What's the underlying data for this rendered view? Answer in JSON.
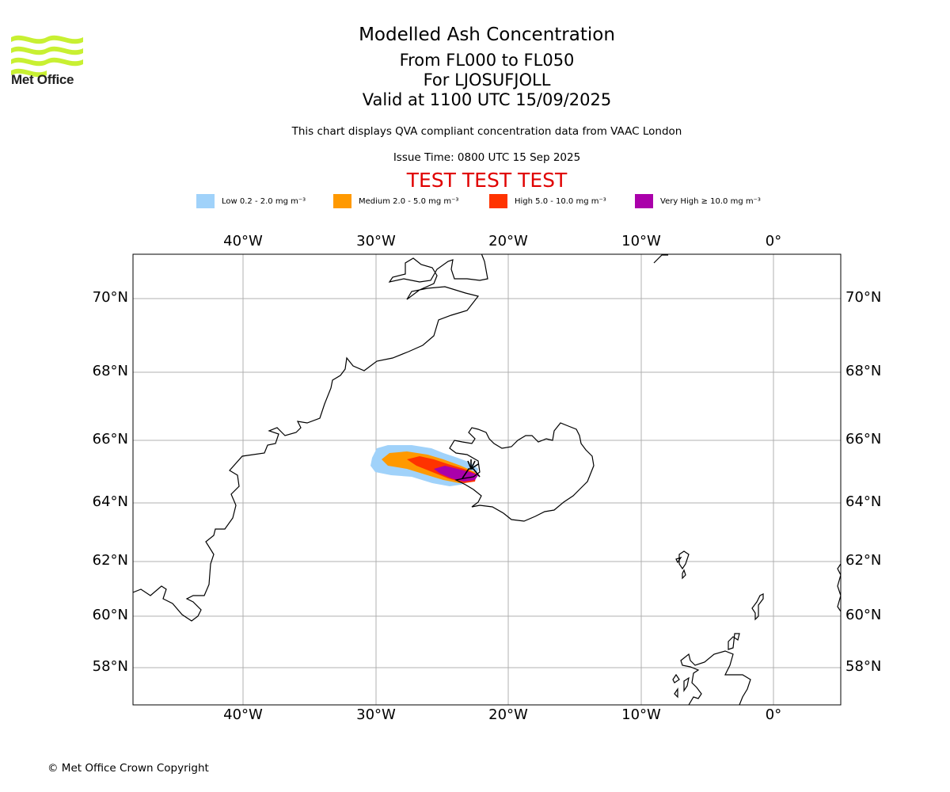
{
  "logo": {
    "brand": "Met Office",
    "color": "#c8f032"
  },
  "header": {
    "title": "Modelled Ash Concentration",
    "level_range": "From FL000 to FL050",
    "location": "For LJOSUFJOLL",
    "valid": "Valid at 1100 UTC 15/09/2025",
    "description": "This chart displays QVA compliant concentration data from VAAC London",
    "issue_time": "Issue Time: 0800 UTC 15 Sep 2025",
    "test_banner": "TEST TEST TEST"
  },
  "legend": [
    {
      "label": "Low 0.2 - 2.0 mg m⁻³",
      "color": "#a0d2fa"
    },
    {
      "label": "Medium 2.0 - 5.0 mg m⁻³",
      "color": "#ff9900"
    },
    {
      "label": "High 5.0 - 10.0 mg m⁻³",
      "color": "#ff3300"
    },
    {
      "label": "Very High  ≥  10.0 mg m⁻³",
      "color": "#aa00aa"
    }
  ],
  "map": {
    "longitude_labels": [
      "40°W",
      "30°W",
      "20°W",
      "10°W",
      "0°"
    ],
    "latitude_labels": [
      "70°N",
      "68°N",
      "66°N",
      "64°N",
      "62°N",
      "60°N",
      "58°N"
    ],
    "grid": true,
    "volcano_symbol": "volcano-icon"
  },
  "footer": {
    "copyright": "© Met Office Crown Copyright"
  }
}
